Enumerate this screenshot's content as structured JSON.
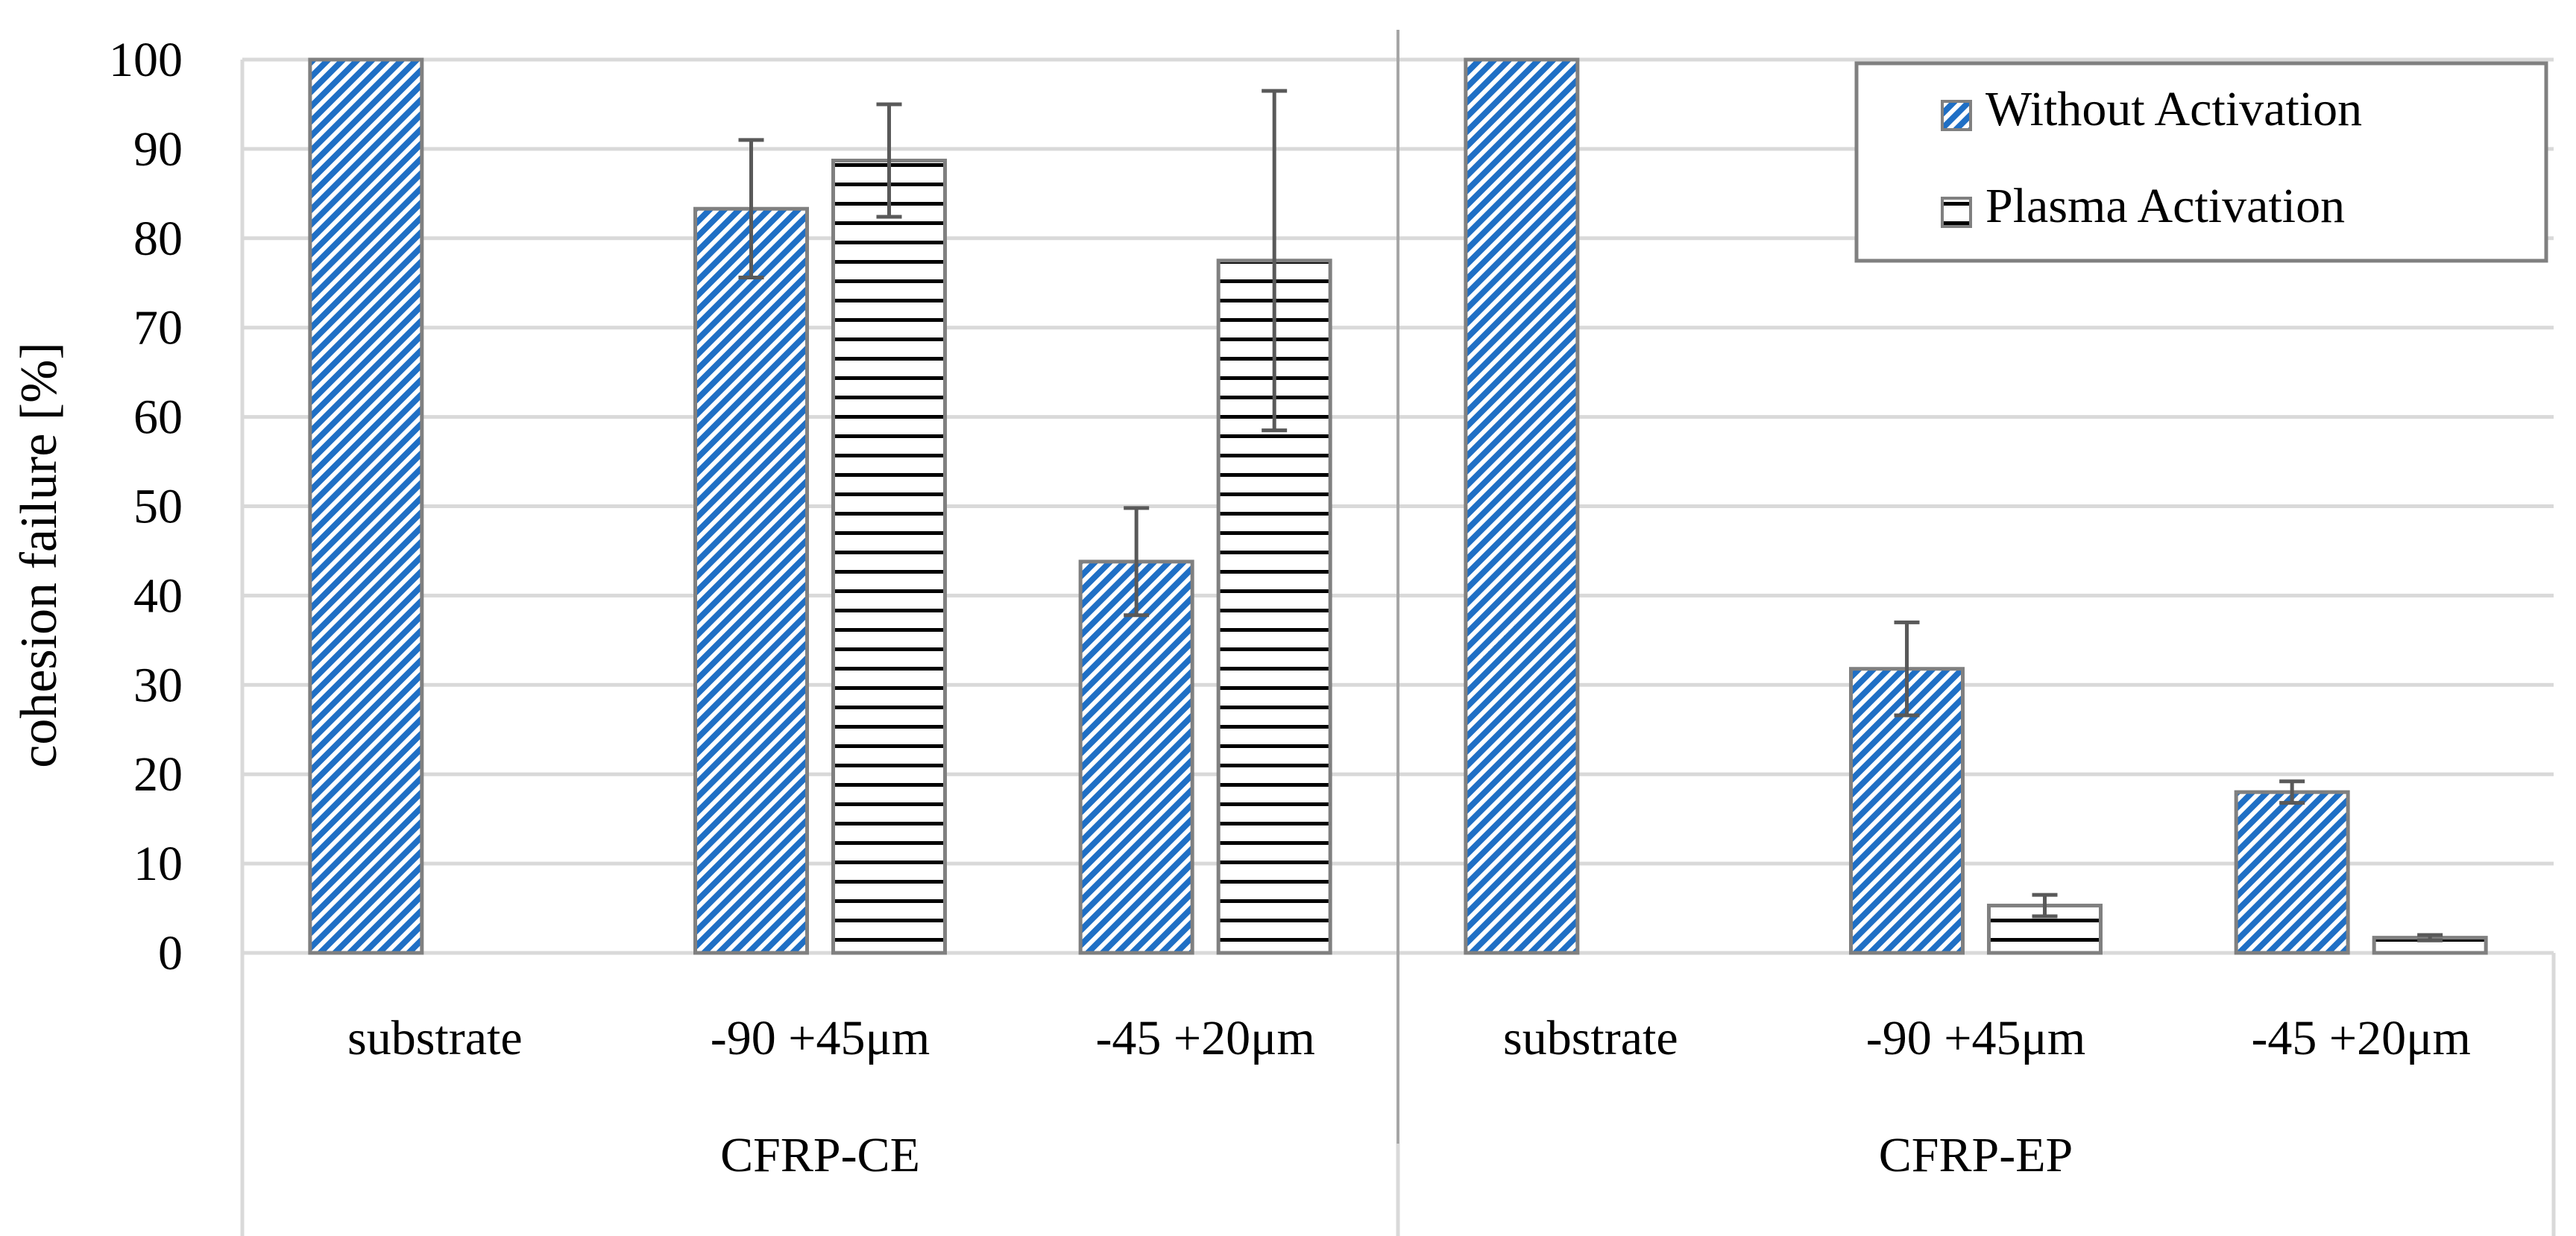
{
  "chart_data": {
    "type": "bar",
    "title": "",
    "ylabel": "cohesion failure [%]",
    "xlabel": "",
    "ylim": [
      0,
      100
    ],
    "yticks": [
      0,
      10,
      20,
      30,
      40,
      50,
      60,
      70,
      80,
      90,
      100
    ],
    "grid": true,
    "legend_position": "top-right",
    "groups": [
      {
        "name": "CFRP-CE",
        "categories": [
          "substrate",
          "-90 +45μm",
          "-45 +20μm"
        ]
      },
      {
        "name": "CFRP-EP",
        "categories": [
          "substrate",
          "-90 +45μm",
          "-45 +20μm"
        ]
      }
    ],
    "categories": [
      "substrate",
      "-90 +45μm",
      "-45 +20μm",
      "substrate",
      "-90 +45μm",
      "-45 +20μm"
    ],
    "series": [
      {
        "name": "Without Activation",
        "pattern": "diagonal-stripes",
        "color": "#1f6fc5",
        "values": [
          100,
          83.3,
          43.8,
          100,
          31.8,
          18
        ],
        "errors": [
          0,
          7.7,
          6,
          0,
          5.2,
          1.2
        ]
      },
      {
        "name": "Plasma Activation",
        "pattern": "horizontal-stripes",
        "color": "#000000",
        "values": [
          null,
          88.7,
          77.5,
          null,
          5.3,
          1.7
        ],
        "errors": [
          0,
          6.3,
          19,
          0,
          1.2,
          0.3
        ]
      }
    ],
    "colors": {
      "grid": "#d9d9d9",
      "bar_border": "#808080",
      "errorbar": "#595959"
    }
  }
}
